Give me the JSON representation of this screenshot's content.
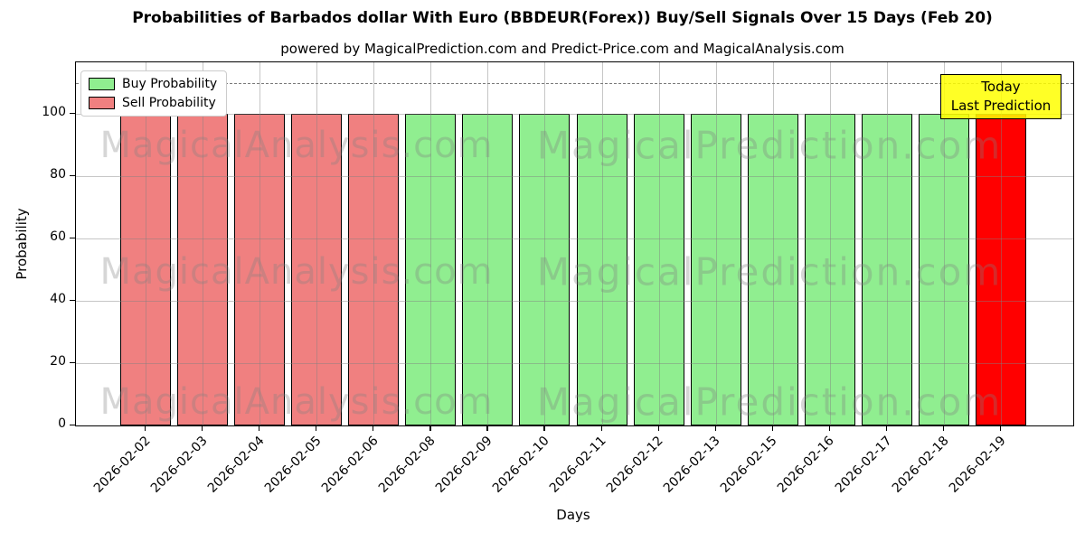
{
  "chart_data": {
    "type": "bar",
    "title": "Probabilities of Barbados dollar With Euro (BBDEUR(Forex)) Buy/Sell Signals Over 15 Days (Feb 20)",
    "subtitle": "powered by MagicalPrediction.com and Predict-Price.com and MagicalAnalysis.com",
    "xlabel": "Days",
    "ylabel": "Probability",
    "ylim": [
      0,
      117
    ],
    "yticks": [
      0,
      20,
      40,
      60,
      80,
      100
    ],
    "grid": true,
    "dashed_line_y": 110,
    "categories": [
      "2026-02-02",
      "2026-02-03",
      "2026-02-04",
      "2026-02-05",
      "2026-02-06",
      "2026-02-08",
      "2026-02-09",
      "2026-02-10",
      "2026-02-11",
      "2026-02-12",
      "2026-02-13",
      "2026-02-15",
      "2026-02-16",
      "2026-02-17",
      "2026-02-18",
      "2026-02-19"
    ],
    "values": [
      100,
      100,
      100,
      100,
      100,
      100,
      100,
      100,
      100,
      100,
      100,
      100,
      100,
      100,
      100,
      100
    ],
    "bar_colors": [
      "#f08080",
      "#f08080",
      "#f08080",
      "#f08080",
      "#f08080",
      "#90ee90",
      "#90ee90",
      "#90ee90",
      "#90ee90",
      "#90ee90",
      "#90ee90",
      "#90ee90",
      "#90ee90",
      "#90ee90",
      "#90ee90",
      "#ff0000"
    ],
    "series": [
      {
        "name": "Buy Probability",
        "color": "#90ee90",
        "values": [
          0,
          0,
          0,
          0,
          0,
          100,
          100,
          100,
          100,
          100,
          100,
          100,
          100,
          100,
          100,
          0
        ]
      },
      {
        "name": "Sell Probability",
        "color": "#f08080",
        "values": [
          100,
          100,
          100,
          100,
          100,
          0,
          0,
          0,
          0,
          0,
          0,
          0,
          0,
          0,
          0,
          100
        ]
      }
    ],
    "legend": {
      "position": "upper left",
      "items": [
        {
          "label": "Buy Probability",
          "color": "#90ee90"
        },
        {
          "label": "Sell Probability",
          "color": "#f08080"
        }
      ]
    },
    "annotation": {
      "lines": [
        "Today",
        "Last Prediction"
      ],
      "bg_color": "#ffff00",
      "last_bar_color": "#ff0000"
    },
    "watermarks": [
      "MagicalAnalysis.com",
      "MagicalPrediction.com"
    ]
  }
}
